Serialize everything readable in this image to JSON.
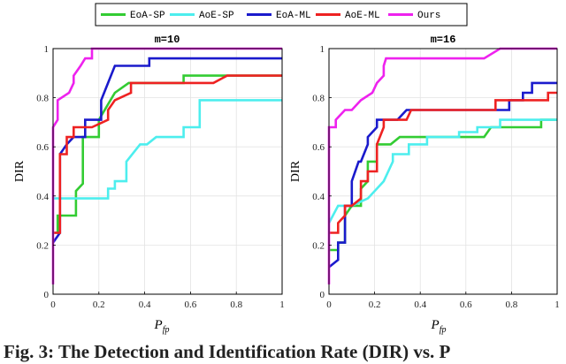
{
  "legend": {
    "items": [
      {
        "label": "EoA-SP",
        "color": "#33cc33"
      },
      {
        "label": "AoE-SP",
        "color": "#4deeee"
      },
      {
        "label": "EoA-ML",
        "color": "#1a1acc"
      },
      {
        "label": "AoE-ML",
        "color": "#ee2222"
      },
      {
        "label": "Ours",
        "color": "#ee22ee"
      }
    ]
  },
  "caption": "Fig. 3: The Detection and Identification Rate (DIR) vs. P",
  "chart_data": [
    {
      "type": "line",
      "title": "m=10",
      "xlabel": "P",
      "xlabel_sub": "fp",
      "ylabel": "DIR",
      "xlim": [
        0,
        1
      ],
      "ylim": [
        0,
        1
      ],
      "xticks": [
        0,
        0.2,
        0.4,
        0.6,
        0.8,
        1
      ],
      "xticklabels": [
        "0",
        "0.2",
        "0.4",
        "0.6",
        "0.8",
        "1"
      ],
      "yticks": [
        0,
        0.2,
        0.4,
        0.6,
        0.8,
        1
      ],
      "yticklabels": [
        "0",
        "0.2",
        "0.4",
        "0.6",
        "0.8",
        "1"
      ],
      "series": [
        {
          "name": "EoA-SP",
          "color": "#33cc33",
          "points": [
            [
              0,
              0.25
            ],
            [
              0.02,
              0.25
            ],
            [
              0.02,
              0.32
            ],
            [
              0.1,
              0.32
            ],
            [
              0.1,
              0.42
            ],
            [
              0.13,
              0.45
            ],
            [
              0.13,
              0.64
            ],
            [
              0.2,
              0.64
            ],
            [
              0.2,
              0.71
            ],
            [
              0.27,
              0.82
            ],
            [
              0.33,
              0.86
            ],
            [
              0.57,
              0.86
            ],
            [
              0.57,
              0.89
            ],
            [
              1,
              0.89
            ]
          ]
        },
        {
          "name": "AoE-SP",
          "color": "#4deeee",
          "points": [
            [
              0,
              0.39
            ],
            [
              0.24,
              0.39
            ],
            [
              0.24,
              0.43
            ],
            [
              0.27,
              0.43
            ],
            [
              0.27,
              0.46
            ],
            [
              0.32,
              0.46
            ],
            [
              0.32,
              0.54
            ],
            [
              0.38,
              0.61
            ],
            [
              0.41,
              0.61
            ],
            [
              0.45,
              0.64
            ],
            [
              0.57,
              0.64
            ],
            [
              0.57,
              0.68
            ],
            [
              0.64,
              0.68
            ],
            [
              0.64,
              0.79
            ],
            [
              1,
              0.79
            ]
          ]
        },
        {
          "name": "EoA-ML",
          "color": "#1a1acc",
          "points": [
            [
              0,
              0.21
            ],
            [
              0.03,
              0.25
            ],
            [
              0.03,
              0.57
            ],
            [
              0.06,
              0.61
            ],
            [
              0.09,
              0.64
            ],
            [
              0.14,
              0.64
            ],
            [
              0.14,
              0.71
            ],
            [
              0.21,
              0.71
            ],
            [
              0.21,
              0.79
            ],
            [
              0.27,
              0.93
            ],
            [
              0.42,
              0.93
            ],
            [
              0.42,
              0.96
            ],
            [
              1,
              0.96
            ]
          ]
        },
        {
          "name": "AoE-ML",
          "color": "#ee2222",
          "points": [
            [
              0,
              0.25
            ],
            [
              0.03,
              0.25
            ],
            [
              0.03,
              0.57
            ],
            [
              0.06,
              0.57
            ],
            [
              0.06,
              0.64
            ],
            [
              0.09,
              0.64
            ],
            [
              0.09,
              0.68
            ],
            [
              0.17,
              0.68
            ],
            [
              0.24,
              0.71
            ],
            [
              0.24,
              0.75
            ],
            [
              0.27,
              0.79
            ],
            [
              0.34,
              0.82
            ],
            [
              0.34,
              0.86
            ],
            [
              0.7,
              0.86
            ],
            [
              0.76,
              0.89
            ],
            [
              1,
              0.89
            ]
          ]
        },
        {
          "name": "Ours",
          "color": "#ee22ee",
          "points": [
            [
              0,
              0.04
            ],
            [
              0,
              0.68
            ],
            [
              0.02,
              0.71
            ],
            [
              0.02,
              0.79
            ],
            [
              0.07,
              0.82
            ],
            [
              0.09,
              0.86
            ],
            [
              0.09,
              0.89
            ],
            [
              0.12,
              0.93
            ],
            [
              0.14,
              0.96
            ],
            [
              0.17,
              0.96
            ],
            [
              0.17,
              1
            ],
            [
              1,
              1
            ]
          ]
        }
      ]
    },
    {
      "type": "line",
      "title": "m=16",
      "xlabel": "P",
      "xlabel_sub": "fp",
      "ylabel": "DIR",
      "xlim": [
        0,
        1
      ],
      "ylim": [
        0,
        1
      ],
      "xticks": [
        0,
        0.2,
        0.4,
        0.6,
        0.8,
        1
      ],
      "xticklabels": [
        "0",
        "0.2",
        "0.4",
        "0.6",
        "0.8",
        "1"
      ],
      "yticks": [
        0,
        0.2,
        0.4,
        0.6,
        0.8,
        1
      ],
      "yticklabels": [
        "0",
        "0.2",
        "0.4",
        "0.6",
        "0.8",
        "1"
      ],
      "series": [
        {
          "name": "EoA-SP",
          "color": "#33cc33",
          "points": [
            [
              0,
              0.18
            ],
            [
              0.04,
              0.18
            ],
            [
              0.04,
              0.21
            ],
            [
              0.07,
              0.21
            ],
            [
              0.07,
              0.32
            ],
            [
              0.1,
              0.36
            ],
            [
              0.14,
              0.36
            ],
            [
              0.14,
              0.43
            ],
            [
              0.17,
              0.46
            ],
            [
              0.17,
              0.54
            ],
            [
              0.21,
              0.54
            ],
            [
              0.21,
              0.61
            ],
            [
              0.27,
              0.61
            ],
            [
              0.31,
              0.64
            ],
            [
              0.5,
              0.64
            ],
            [
              0.68,
              0.64
            ],
            [
              0.71,
              0.68
            ],
            [
              0.93,
              0.68
            ],
            [
              0.93,
              0.71
            ],
            [
              1,
              0.71
            ]
          ]
        },
        {
          "name": "AoE-SP",
          "color": "#4deeee",
          "points": [
            [
              0,
              0.29
            ],
            [
              0.04,
              0.36
            ],
            [
              0.1,
              0.36
            ],
            [
              0.17,
              0.39
            ],
            [
              0.21,
              0.43
            ],
            [
              0.24,
              0.46
            ],
            [
              0.28,
              0.54
            ],
            [
              0.28,
              0.57
            ],
            [
              0.35,
              0.57
            ],
            [
              0.35,
              0.61
            ],
            [
              0.43,
              0.61
            ],
            [
              0.43,
              0.64
            ],
            [
              0.57,
              0.64
            ],
            [
              0.57,
              0.66
            ],
            [
              0.65,
              0.66
            ],
            [
              0.65,
              0.68
            ],
            [
              0.75,
              0.68
            ],
            [
              0.75,
              0.71
            ],
            [
              1,
              0.71
            ]
          ]
        },
        {
          "name": "EoA-ML",
          "color": "#1a1acc",
          "points": [
            [
              0,
              0.11
            ],
            [
              0.04,
              0.14
            ],
            [
              0.04,
              0.21
            ],
            [
              0.07,
              0.21
            ],
            [
              0.07,
              0.36
            ],
            [
              0.1,
              0.36
            ],
            [
              0.1,
              0.46
            ],
            [
              0.13,
              0.54
            ],
            [
              0.14,
              0.54
            ],
            [
              0.17,
              0.61
            ],
            [
              0.17,
              0.64
            ],
            [
              0.21,
              0.68
            ],
            [
              0.21,
              0.71
            ],
            [
              0.3,
              0.71
            ],
            [
              0.34,
              0.75
            ],
            [
              0.79,
              0.75
            ],
            [
              0.79,
              0.79
            ],
            [
              0.85,
              0.79
            ],
            [
              0.85,
              0.82
            ],
            [
              0.89,
              0.82
            ],
            [
              0.89,
              0.86
            ],
            [
              1,
              0.86
            ]
          ]
        },
        {
          "name": "AoE-ML",
          "color": "#ee2222",
          "points": [
            [
              0,
              0.25
            ],
            [
              0.04,
              0.25
            ],
            [
              0.04,
              0.29
            ],
            [
              0.07,
              0.32
            ],
            [
              0.07,
              0.36
            ],
            [
              0.1,
              0.36
            ],
            [
              0.14,
              0.39
            ],
            [
              0.14,
              0.46
            ],
            [
              0.17,
              0.46
            ],
            [
              0.17,
              0.5
            ],
            [
              0.21,
              0.5
            ],
            [
              0.21,
              0.61
            ],
            [
              0.24,
              0.68
            ],
            [
              0.24,
              0.71
            ],
            [
              0.34,
              0.71
            ],
            [
              0.36,
              0.75
            ],
            [
              0.66,
              0.75
            ],
            [
              0.73,
              0.75
            ],
            [
              0.73,
              0.79
            ],
            [
              0.96,
              0.79
            ],
            [
              0.96,
              0.82
            ],
            [
              1,
              0.82
            ]
          ]
        },
        {
          "name": "Ours",
          "color": "#ee22ee",
          "points": [
            [
              0,
              0.04
            ],
            [
              0,
              0.68
            ],
            [
              0.03,
              0.68
            ],
            [
              0.03,
              0.71
            ],
            [
              0.07,
              0.75
            ],
            [
              0.1,
              0.75
            ],
            [
              0.14,
              0.79
            ],
            [
              0.19,
              0.82
            ],
            [
              0.21,
              0.86
            ],
            [
              0.24,
              0.89
            ],
            [
              0.24,
              0.93
            ],
            [
              0.25,
              0.96
            ],
            [
              0.68,
              0.96
            ],
            [
              0.75,
              1
            ],
            [
              1,
              1
            ]
          ]
        }
      ]
    }
  ]
}
